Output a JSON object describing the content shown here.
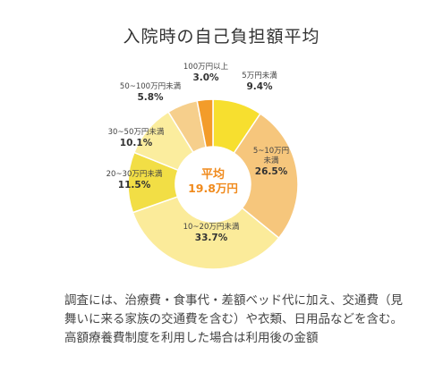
{
  "chart_data": {
    "type": "pie",
    "title": "入院時の自己負担額平均",
    "center": {
      "title": "平均",
      "value": "19.8万円"
    },
    "slices": [
      {
        "label": "5万円未満",
        "value": 9.4,
        "display": "9.4%",
        "color": "#f7df2f"
      },
      {
        "label": "5~10万円未満",
        "value": 26.5,
        "display": "26.5%",
        "color": "#f6c67c"
      },
      {
        "label": "10~20万円未満",
        "value": 33.7,
        "display": "33.7%",
        "color": "#fbeb9a"
      },
      {
        "label": "20~30万円未満",
        "value": 11.5,
        "display": "11.5%",
        "color": "#f2de45"
      },
      {
        "label": "30~50万円未満",
        "value": 10.1,
        "display": "10.1%",
        "color": "#fbed9e"
      },
      {
        "label": "50~100万円未満",
        "value": 5.8,
        "display": "5.8%",
        "color": "#f6cf8c"
      },
      {
        "label": "100万円以上",
        "value": 3.0,
        "display": "3.0%",
        "color": "#f39c2a"
      }
    ]
  },
  "note": {
    "lines": [
      "調査には、治療費・食事代・差額ベッド代に加え、交通費（見",
      "舞いに来る家族の交通費を含む）や衣類、日用品などを含む。",
      "高額療養費制度を利用した場合は利用後の金額"
    ]
  }
}
